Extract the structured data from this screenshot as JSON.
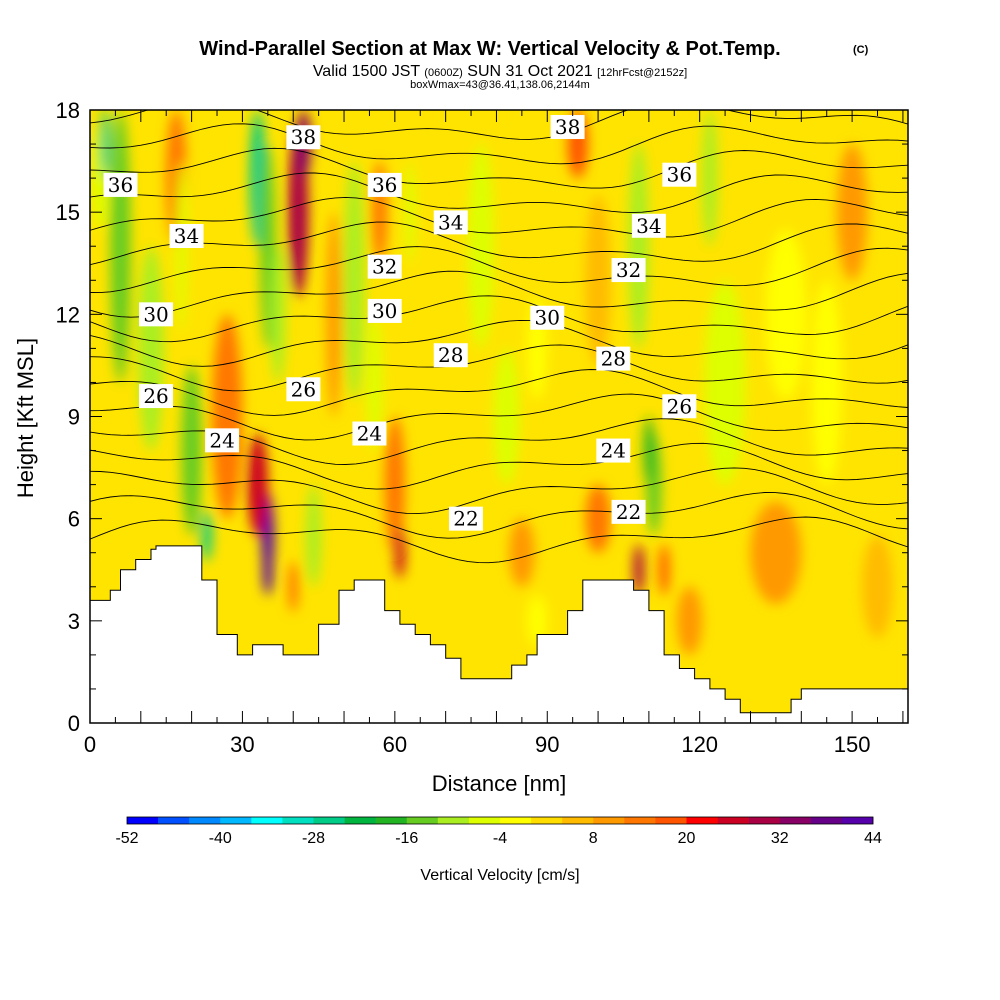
{
  "titles": {
    "main": "Wind-Parallel Section at Max W: Vertical Velocity & Pot.Temp.",
    "copyright": "(C)",
    "valid_a": "Valid 1500 JST ",
    "valid_b": "(0600Z)",
    "valid_c": " SUN 31 Oct 2021 ",
    "valid_d": "[12hrFcst@2152z]",
    "boxwmax": "boxWmax=43@36.41,138.06,2144m"
  },
  "chart_data": {
    "type": "heatmap",
    "xlabel": "Distance [nm]",
    "ylabel": "Height [Kft MSL]",
    "xlim": [
      0,
      161
    ],
    "ylim": [
      0,
      18
    ],
    "x_ticks": [
      "0",
      "30",
      "60",
      "90",
      "120",
      "150"
    ],
    "x_tick_values": [
      0,
      30,
      60,
      90,
      120,
      150
    ],
    "y_ticks": [
      "0",
      "3",
      "6",
      "9",
      "12",
      "15",
      "18"
    ],
    "y_tick_values": [
      0,
      3,
      6,
      9,
      12,
      15,
      18
    ],
    "colorbar": {
      "label": "Vertical Velocity [cm/s]",
      "range": [
        -52,
        44
      ],
      "step": 4,
      "tick_labels": [
        "-52",
        "-40",
        "-28",
        "-16",
        "-4",
        "8",
        "20",
        "32",
        "44"
      ],
      "colors": [
        "#0000ff",
        "#0050ff",
        "#0088ff",
        "#00b8ff",
        "#00ffff",
        "#00e0c0",
        "#00cc88",
        "#00b440",
        "#22b422",
        "#66cc22",
        "#aaee22",
        "#ddff00",
        "#ffff00",
        "#ffdd00",
        "#ffbb00",
        "#ff9900",
        "#ff7700",
        "#ff5500",
        "#ff0000",
        "#cc0022",
        "#aa0044",
        "#880066",
        "#660088",
        "#5500aa"
      ]
    },
    "terrain_kft": [
      [
        0,
        3.6
      ],
      [
        4,
        3.6
      ],
      [
        4,
        3.9
      ],
      [
        6,
        3.9
      ],
      [
        6,
        4.5
      ],
      [
        9,
        4.5
      ],
      [
        9,
        4.8
      ],
      [
        12,
        4.8
      ],
      [
        12,
        5.1
      ],
      [
        13,
        5.1
      ],
      [
        13,
        5.2
      ],
      [
        22,
        5.2
      ],
      [
        22,
        4.2
      ],
      [
        25,
        4.2
      ],
      [
        25,
        2.6
      ],
      [
        29,
        2.6
      ],
      [
        29,
        2.0
      ],
      [
        32,
        2.0
      ],
      [
        32,
        2.3
      ],
      [
        38,
        2.3
      ],
      [
        38,
        2.0
      ],
      [
        45,
        2.0
      ],
      [
        45,
        2.9
      ],
      [
        49,
        2.9
      ],
      [
        49,
        3.9
      ],
      [
        52,
        3.9
      ],
      [
        52,
        4.2
      ],
      [
        58,
        4.2
      ],
      [
        58,
        3.3
      ],
      [
        61,
        3.3
      ],
      [
        61,
        2.9
      ],
      [
        64,
        2.9
      ],
      [
        64,
        2.6
      ],
      [
        67,
        2.6
      ],
      [
        67,
        2.3
      ],
      [
        70,
        2.3
      ],
      [
        70,
        1.9
      ],
      [
        73,
        1.9
      ],
      [
        73,
        1.3
      ],
      [
        83,
        1.3
      ],
      [
        83,
        1.7
      ],
      [
        86,
        1.7
      ],
      [
        86,
        2.0
      ],
      [
        88,
        2.0
      ],
      [
        88,
        2.6
      ],
      [
        94,
        2.6
      ],
      [
        94,
        3.3
      ],
      [
        97,
        3.3
      ],
      [
        97,
        4.2
      ],
      [
        107,
        4.2
      ],
      [
        107,
        3.9
      ],
      [
        110,
        3.9
      ],
      [
        110,
        3.3
      ],
      [
        113,
        3.3
      ],
      [
        113,
        2.0
      ],
      [
        116,
        2.0
      ],
      [
        116,
        1.6
      ],
      [
        119,
        1.6
      ],
      [
        119,
        1.3
      ],
      [
        122,
        1.3
      ],
      [
        122,
        1.0
      ],
      [
        125,
        1.0
      ],
      [
        125,
        0.7
      ],
      [
        128,
        0.7
      ],
      [
        128,
        0.3
      ],
      [
        138,
        0.3
      ],
      [
        138,
        0.7
      ],
      [
        140,
        0.7
      ],
      [
        140,
        1.0
      ],
      [
        161,
        1.0
      ]
    ],
    "theta_contours": [
      {
        "label": "22",
        "label_x": 74,
        "label_y": 6.0
      },
      {
        "label": "22",
        "label_x": 106,
        "label_y": 6.2
      },
      {
        "label": "24",
        "label_x": 26,
        "label_y": 8.3
      },
      {
        "label": "24",
        "label_x": 55,
        "label_y": 8.5
      },
      {
        "label": "24",
        "label_x": 103,
        "label_y": 8.0
      },
      {
        "label": "26",
        "label_x": 13,
        "label_y": 9.6
      },
      {
        "label": "26",
        "label_x": 42,
        "label_y": 9.8
      },
      {
        "label": "26",
        "label_x": 116,
        "label_y": 9.3
      },
      {
        "label": "28",
        "label_x": 71,
        "label_y": 10.8
      },
      {
        "label": "28",
        "label_x": 103,
        "label_y": 10.7
      },
      {
        "label": "30",
        "label_x": 13,
        "label_y": 12.0
      },
      {
        "label": "30",
        "label_x": 58,
        "label_y": 12.1
      },
      {
        "label": "30",
        "label_x": 90,
        "label_y": 11.9
      },
      {
        "label": "32",
        "label_x": 58,
        "label_y": 13.4
      },
      {
        "label": "32",
        "label_x": 106,
        "label_y": 13.3
      },
      {
        "label": "34",
        "label_x": 19,
        "label_y": 14.3
      },
      {
        "label": "34",
        "label_x": 71,
        "label_y": 14.7
      },
      {
        "label": "34",
        "label_x": 110,
        "label_y": 14.6
      },
      {
        "label": "36",
        "label_x": 6,
        "label_y": 15.8
      },
      {
        "label": "36",
        "label_x": 58,
        "label_y": 15.8
      },
      {
        "label": "36",
        "label_x": 116,
        "label_y": 16.1
      },
      {
        "label": "38",
        "label_x": 42,
        "label_y": 17.2
      },
      {
        "label": "38",
        "label_x": 94,
        "label_y": 17.5
      }
    ]
  }
}
